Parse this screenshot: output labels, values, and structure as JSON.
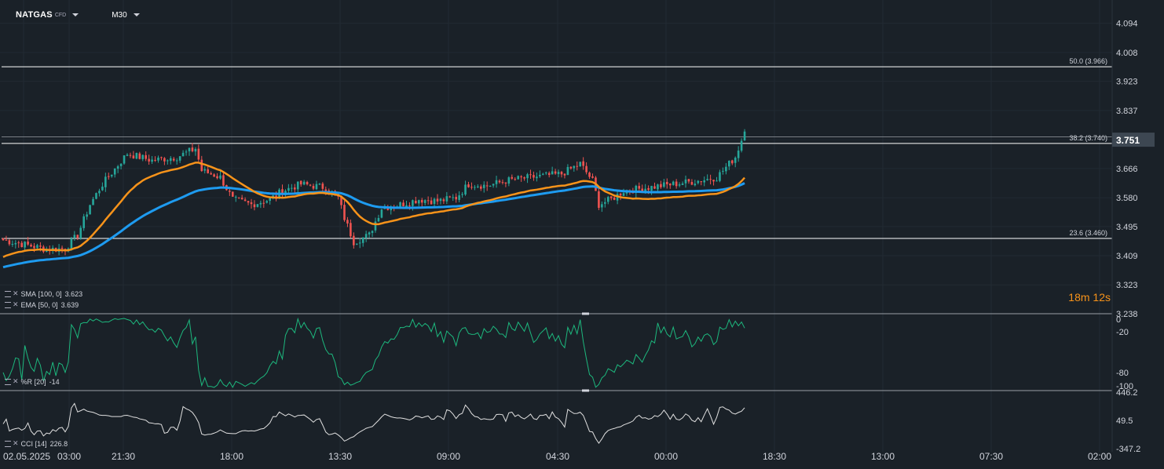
{
  "toolbar": {
    "symbol": "NATGAS",
    "symbol_sub": "CFD",
    "timeframe": "M30"
  },
  "legends": {
    "sma": {
      "name": "SMA",
      "params": "[100,  0]",
      "value": "3.623"
    },
    "ema": {
      "name": "EMA",
      "params": "[50,  0]",
      "value": "3.639"
    },
    "wpr": {
      "name": "%R",
      "params": "[20]",
      "value": "-14"
    },
    "cci": {
      "name": "CCI",
      "params": "[14]",
      "value": "226.8"
    }
  },
  "timer": {
    "minutes": "18",
    "minutes_unit": "m",
    "seconds": "12",
    "seconds_unit": "s"
  },
  "colors": {
    "background": "#1a2128",
    "up": "#26a69a",
    "down": "#ef5350",
    "ema": "#f7931a",
    "sma": "#1e9bf0",
    "wpr": "#1db87e",
    "cci": "#e0e0e0",
    "text": "#d1d4dc"
  },
  "chart_data": {
    "type": "candlestick",
    "price_axis": {
      "ticks": [
        "4.094",
        "4.008",
        "3.923",
        "3.837",
        "3.751",
        "3.666",
        "3.580",
        "3.495",
        "3.409",
        "3.323",
        "3.238"
      ],
      "range": [
        3.238,
        4.135
      ]
    },
    "current_price_label": "3.751",
    "time_axis": {
      "labels": [
        "02.05.2025",
        "03:00",
        "21:30",
        "18:00",
        "13:30",
        "09:00",
        "04:30",
        "00:00",
        "18:30",
        "13:00",
        "07:30",
        "02:00"
      ]
    },
    "fib_levels": [
      {
        "label": "50.0 (3.966)",
        "value": 3.966
      },
      {
        "label": "38.2 (3.740)",
        "value": 3.74
      },
      {
        "label": "23.6 (3.460)",
        "value": 3.46
      }
    ],
    "price_anchors": [
      [
        0,
        3.455
      ],
      [
        8,
        3.44
      ],
      [
        14,
        3.428
      ],
      [
        20,
        3.43
      ],
      [
        24,
        3.47
      ],
      [
        28,
        3.56
      ],
      [
        32,
        3.62
      ],
      [
        36,
        3.665
      ],
      [
        40,
        3.71
      ],
      [
        48,
        3.69
      ],
      [
        56,
        3.7
      ],
      [
        62,
        3.725
      ],
      [
        64,
        3.66
      ],
      [
        70,
        3.64
      ],
      [
        74,
        3.575
      ],
      [
        80,
        3.56
      ],
      [
        86,
        3.575
      ],
      [
        90,
        3.6
      ],
      [
        96,
        3.62
      ],
      [
        104,
        3.61
      ],
      [
        108,
        3.58
      ],
      [
        110,
        3.52
      ],
      [
        113,
        3.45
      ],
      [
        118,
        3.47
      ],
      [
        122,
        3.55
      ],
      [
        128,
        3.56
      ],
      [
        134,
        3.575
      ],
      [
        140,
        3.57
      ],
      [
        146,
        3.58
      ],
      [
        150,
        3.62
      ],
      [
        156,
        3.615
      ],
      [
        162,
        3.63
      ],
      [
        170,
        3.64
      ],
      [
        180,
        3.65
      ],
      [
        186,
        3.68
      ],
      [
        190,
        3.63
      ],
      [
        192,
        3.56
      ],
      [
        196,
        3.575
      ],
      [
        200,
        3.6
      ],
      [
        208,
        3.61
      ],
      [
        216,
        3.62
      ],
      [
        224,
        3.63
      ],
      [
        230,
        3.64
      ],
      [
        236,
        3.7
      ],
      [
        239,
        3.775
      ]
    ],
    "sma": {
      "name": "SMA [100, 0]",
      "start": 3.375,
      "end": 3.623
    },
    "ema": {
      "name": "EMA [50, 0]",
      "end": 3.639
    },
    "williams_r": {
      "name": "%R [20]",
      "range": [
        -100,
        0
      ],
      "ticks": [
        "0",
        "-20",
        "-80",
        "-100"
      ],
      "last": -14
    },
    "cci": {
      "name": "CCI [14]",
      "ticks": [
        "446.2",
        "49.5",
        "-347.2"
      ],
      "range": [
        -347.2,
        446.2
      ],
      "last": 226.8
    }
  }
}
